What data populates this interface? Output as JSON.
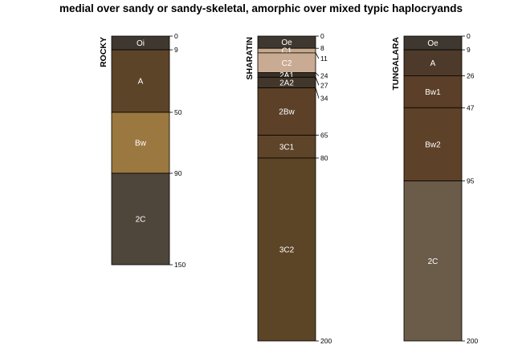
{
  "title": "medial over sandy or sandy-skeletal, amorphic over mixed typic haplocryands",
  "profiles": [
    {
      "name": "ROCKY",
      "horizons": [
        {
          "name": "Oi",
          "top": 0,
          "bottom": 9,
          "color": "#3f3830"
        },
        {
          "name": "A",
          "top": 9,
          "bottom": 50,
          "color": "#5c4428"
        },
        {
          "name": "Bw",
          "top": 50,
          "bottom": 90,
          "color": "#9b7840"
        },
        {
          "name": "2C",
          "top": 90,
          "bottom": 150,
          "color": "#4f463b"
        }
      ],
      "depths": [
        "0",
        "9",
        "50",
        "90",
        "150"
      ]
    },
    {
      "name": "SHARATIN",
      "horizons": [
        {
          "name": "Oe",
          "top": 0,
          "bottom": 8,
          "color": "#3f3830"
        },
        {
          "name": "C1",
          "top": 8,
          "bottom": 11,
          "color": "#c6a88c"
        },
        {
          "name": "C2",
          "top": 11,
          "bottom": 24,
          "color": "#c8ab92"
        },
        {
          "name": "2A1",
          "top": 24,
          "bottom": 27,
          "color": "#3a3026"
        },
        {
          "name": "2A2",
          "top": 27,
          "bottom": 34,
          "color": "#43362a"
        },
        {
          "name": "2Bw",
          "top": 34,
          "bottom": 65,
          "color": "#5c4128"
        },
        {
          "name": "3C1",
          "top": 65,
          "bottom": 80,
          "color": "#5e4429"
        },
        {
          "name": "3C2",
          "top": 80,
          "bottom": 200,
          "color": "#5c4426"
        }
      ],
      "depths": [
        "0",
        "8",
        "11",
        "24",
        "27",
        "34",
        "65",
        "80",
        "200"
      ]
    },
    {
      "name": "TUNGALARA",
      "horizons": [
        {
          "name": "Oe",
          "top": 0,
          "bottom": 9,
          "color": "#3f3830"
        },
        {
          "name": "A",
          "top": 9,
          "bottom": 26,
          "color": "#4e3a2a"
        },
        {
          "name": "Bw1",
          "top": 26,
          "bottom": 47,
          "color": "#5b3f28"
        },
        {
          "name": "Bw2",
          "top": 47,
          "bottom": 95,
          "color": "#5e4129"
        },
        {
          "name": "2C",
          "top": 95,
          "bottom": 200,
          "color": "#6b5b49"
        }
      ],
      "depths": [
        "0",
        "9",
        "26",
        "47",
        "95",
        "200"
      ]
    }
  ]
}
